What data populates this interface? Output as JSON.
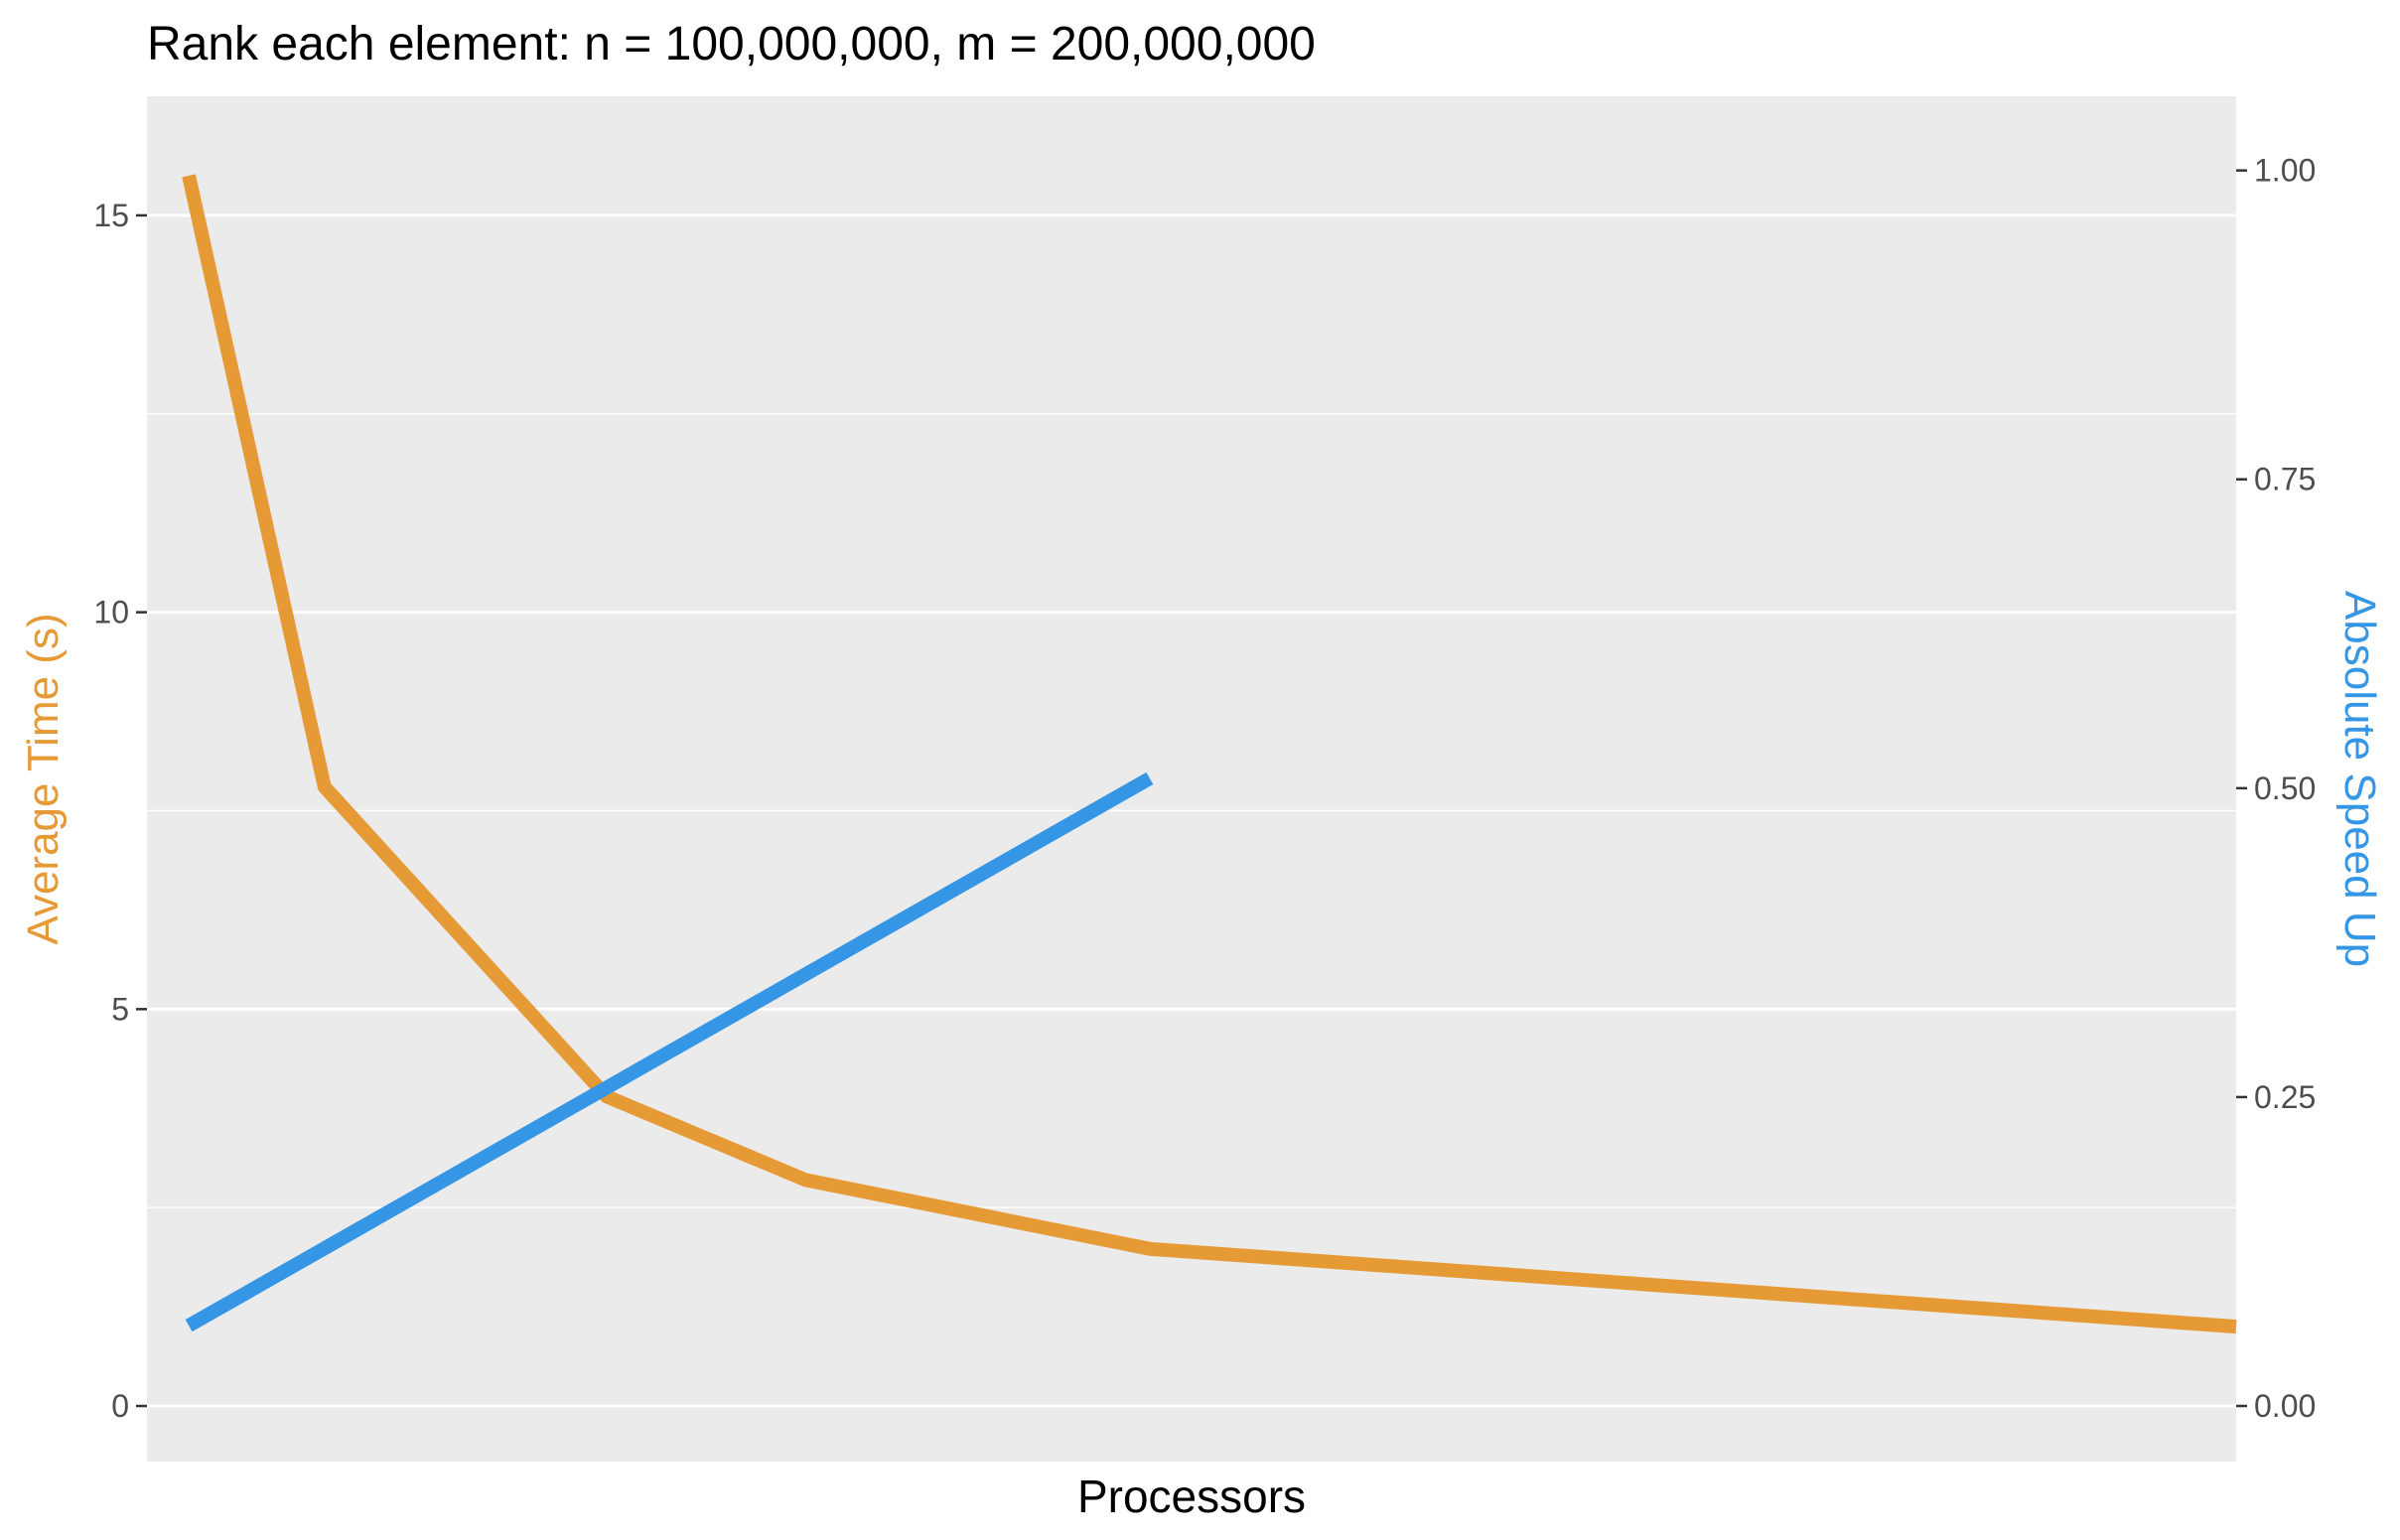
{
  "chart_data": {
    "type": "line",
    "title": "Rank each element: n = 100,000,000, m = 200,000,000",
    "xlabel": "Processors",
    "y_left_label": "Average Time (s)",
    "y_right_label": "Absolute Speed Up",
    "x_ticks_shown": false,
    "grid": true,
    "y_left": {
      "ylim": [
        -0.7,
        16.5
      ],
      "ticks": [
        0,
        5,
        10,
        15
      ],
      "tick_labels": [
        "0",
        "5",
        "10",
        "15"
      ]
    },
    "y_right": {
      "ylim": [
        -0.045,
        1.06
      ],
      "ticks": [
        0,
        0.25,
        0.5,
        0.75,
        1.0
      ],
      "tick_labels": [
        "0.00",
        "0.25",
        "0.50",
        "0.75",
        "1.00"
      ]
    },
    "x_domain": [
      0,
      1
    ],
    "series": [
      {
        "axis": "left",
        "color": "#E69A36",
        "x": [
          0.02,
          0.085,
          0.22,
          0.315,
          0.48,
          1.0
        ],
        "y": [
          15.5,
          7.8,
          3.9,
          2.85,
          1.98,
          1.0
        ]
      },
      {
        "axis": "right",
        "color": "#3596E6",
        "x": [
          0.02,
          0.48
        ],
        "y": [
          0.065,
          0.508
        ]
      }
    ],
    "colors": {
      "time": "#E69A36",
      "speedup": "#3596E6",
      "panel": "#EBEBEB",
      "grid": "#FFFFFF"
    }
  }
}
